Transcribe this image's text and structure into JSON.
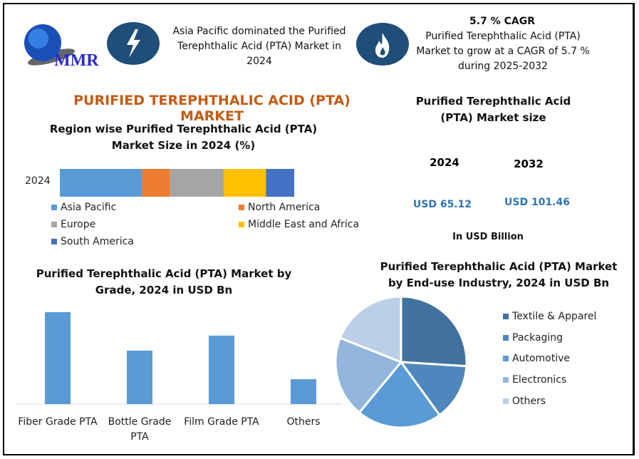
{
  "logo": {
    "text": "MMR"
  },
  "info_left": {
    "icon": "lightning-icon",
    "text": "Asia Pacific dominated the Purified Terephthalic Acid (PTA) Market in 2024"
  },
  "info_right": {
    "icon": "flame-icon",
    "title": "5.7 % CAGR",
    "text": "Purified Terephthalic Acid (PTA) Market to grow at a CAGR of 5.7 % during 2025-2032"
  },
  "main_title": "PURIFIED TEREPHTHALIC ACID (PTA) MARKET",
  "market_size": {
    "title": "Purified Terephthalic Acid (PTA) Market size",
    "years": [
      "2024",
      "2032"
    ],
    "values": [
      "USD 65.12",
      "USD 101.46"
    ],
    "unit": "In USD Billion"
  },
  "colors": {
    "title": "#c55a11",
    "value": "#2e75b6",
    "icon_bg": "#1f4e79"
  },
  "chart_data": [
    {
      "type": "bar",
      "orientation": "horizontal-stacked",
      "title": "Region wise Purified Terephthalic Acid (PTA) Market Size in 2024 (%)",
      "categories": [
        "2024"
      ],
      "series": [
        {
          "name": "Asia Pacific",
          "values": [
            35
          ],
          "color": "#5b9bd5"
        },
        {
          "name": "North America",
          "values": [
            12
          ],
          "color": "#ed7d31"
        },
        {
          "name": "Europe",
          "values": [
            23
          ],
          "color": "#a5a5a5"
        },
        {
          "name": "Middle East and Africa",
          "values": [
            18
          ],
          "color": "#ffc000"
        },
        {
          "name": "South America",
          "values": [
            12
          ],
          "color": "#4472c4"
        }
      ],
      "legend": "bottom"
    },
    {
      "type": "bar",
      "title": "Purified Terephthalic Acid (PTA) Market by Grade, 2024 in USD Bn",
      "categories": [
        "Fiber Grade PTA",
        "Bottle Grade PTA",
        "Film Grade PTA",
        "Others"
      ],
      "values": [
        25.1,
        14.6,
        18.7,
        6.8
      ],
      "color": "#5b9bd5",
      "ylim": [
        0,
        26
      ]
    },
    {
      "type": "pie",
      "title": "Purified Terephthalic Acid (PTA) Market by End-use Industry, 2024 in USD Bn",
      "labels": [
        "Textile & Apparel",
        "Packaging",
        "Automotive",
        "Electronics",
        "Others"
      ],
      "values": [
        26,
        14,
        21,
        20,
        19
      ],
      "colors": [
        "#41729f",
        "#4e87bd",
        "#5b9bd5",
        "#94b5dc",
        "#bccfe8"
      ],
      "legend": "right"
    }
  ]
}
